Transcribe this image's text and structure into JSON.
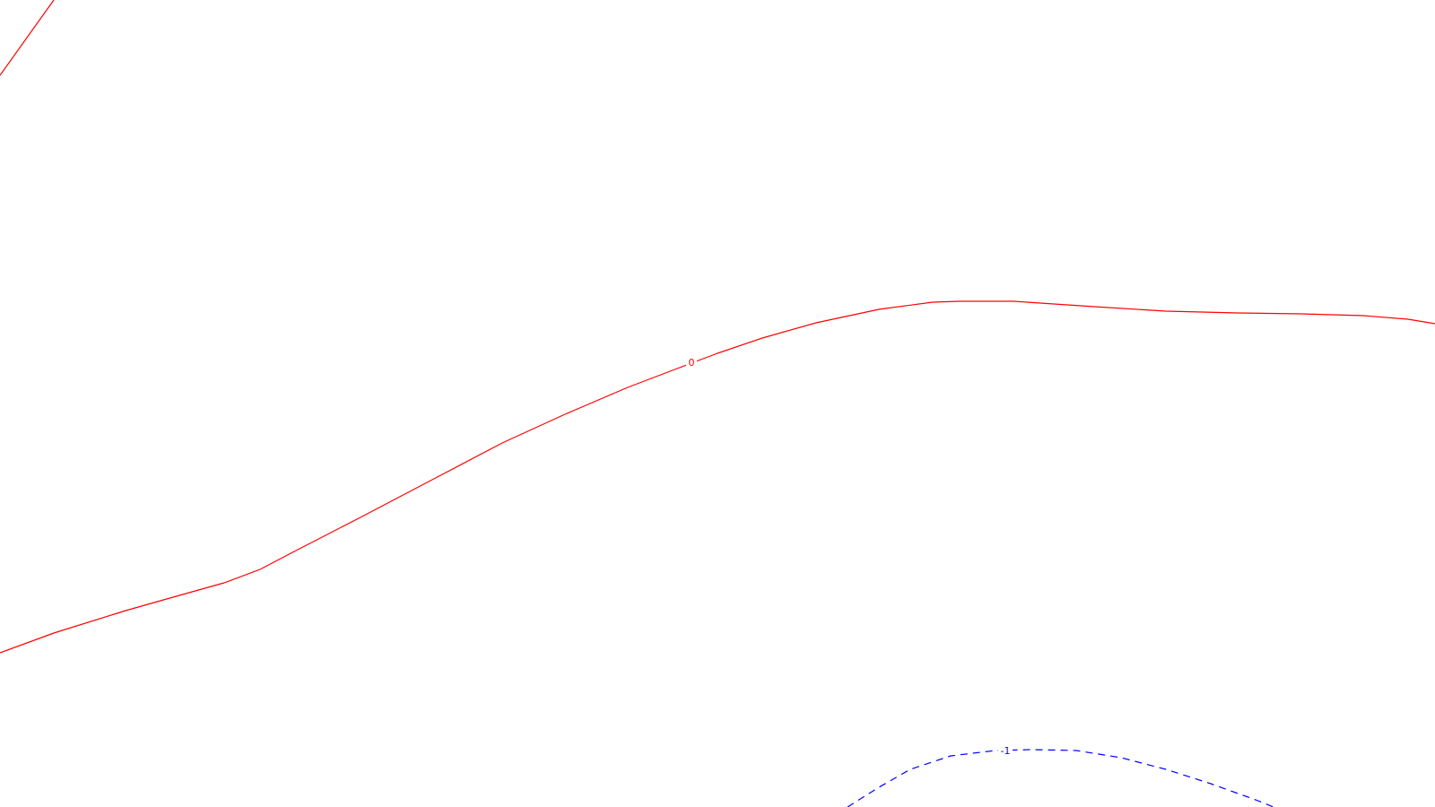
{
  "map": {
    "background": "#ffffff",
    "contours": [
      {
        "id": "corner",
        "level": "",
        "color": "#ff0000",
        "style": "solid"
      },
      {
        "id": "zero",
        "level": "0",
        "color": "#ff0000",
        "style": "solid"
      },
      {
        "id": "minus-one",
        "level": "-1",
        "color": "#0000ff",
        "style": "dashed"
      }
    ]
  }
}
